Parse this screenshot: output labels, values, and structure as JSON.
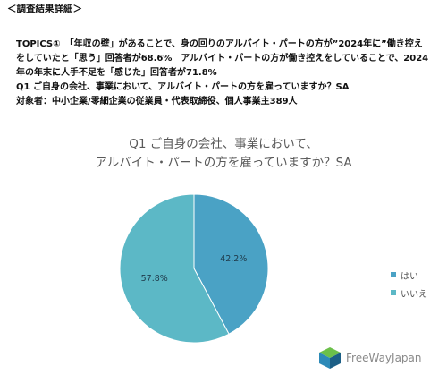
{
  "header": "＜調査結果詳細＞",
  "intro": {
    "line1": "TOPICS①　「年収の壁」があることで、身の回りのアルバイト・パートの方が”2024年に”働き控え",
    "line2": "をしていたと「思う」回答者が68.6%　アルバイト・パートの方が働き控えをしていることで、2024",
    "line3": "年の年末に人手不足を「感じた」回答者が71.8%",
    "line4": "Q1 ご自身の会社、事業において、アルバイト・パートの方を雇っていますか？SA",
    "line5": "対象者：中小企業/零細企業の従業員・代表取締役、個人事業主389人"
  },
  "chart_data": {
    "type": "pie",
    "title_line1": "Q1 ご自身の会社、事業において、",
    "title_line2": "アルバイト・パートの方を雇っていますか？SA",
    "categories": [
      "はい",
      "いいえ"
    ],
    "values": [
      42.2,
      57.8
    ],
    "labels": [
      "42.2%",
      "57.8%"
    ],
    "colors": [
      "#4aa2c5",
      "#5cb8c6"
    ],
    "legend_position": "right",
    "start_angle_deg": 0,
    "direction": "clockwise"
  },
  "logo": {
    "text_part1": "FreeWay",
    "text_part2": "Japan",
    "colors": [
      "#6cc04a",
      "#2d8ab8",
      "#1c5f86"
    ]
  }
}
